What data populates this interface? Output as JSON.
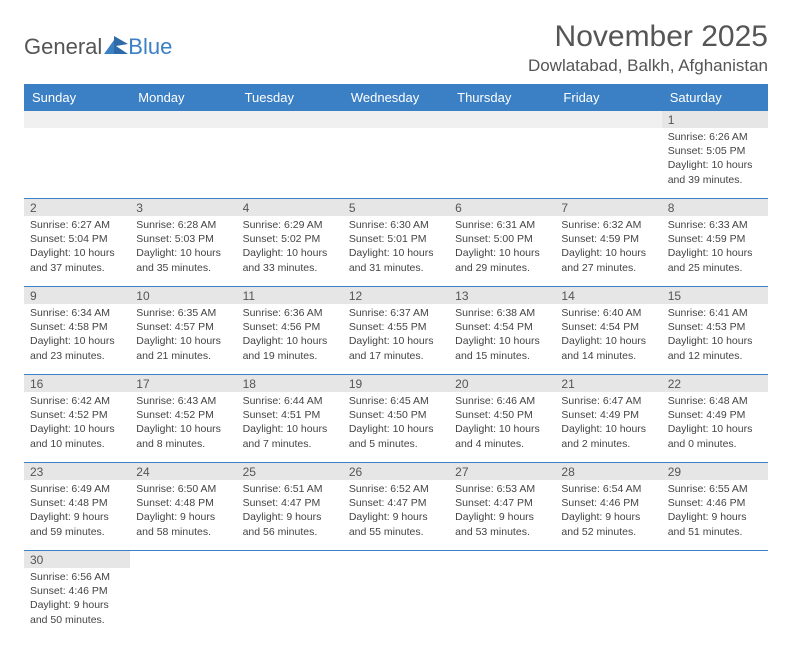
{
  "header": {
    "logo_general": "General",
    "logo_blue": "Blue",
    "month_title": "November 2025",
    "location": "Dowlatabad, Balkh, Afghanistan"
  },
  "colors": {
    "header_bg": "#3b7fc4",
    "header_text": "#ffffff",
    "daynum_bg": "#e6e6e6",
    "border": "#3b7fc4",
    "text": "#444444"
  },
  "day_labels": [
    "Sunday",
    "Monday",
    "Tuesday",
    "Wednesday",
    "Thursday",
    "Friday",
    "Saturday"
  ],
  "weeks": [
    {
      "nums": [
        "",
        "",
        "",
        "",
        "",
        "",
        "1"
      ],
      "cells": [
        null,
        null,
        null,
        null,
        null,
        null,
        {
          "sunrise": "Sunrise: 6:26 AM",
          "sunset": "Sunset: 5:05 PM",
          "day1": "Daylight: 10 hours",
          "day2": "and 39 minutes."
        }
      ]
    },
    {
      "nums": [
        "2",
        "3",
        "4",
        "5",
        "6",
        "7",
        "8"
      ],
      "cells": [
        {
          "sunrise": "Sunrise: 6:27 AM",
          "sunset": "Sunset: 5:04 PM",
          "day1": "Daylight: 10 hours",
          "day2": "and 37 minutes."
        },
        {
          "sunrise": "Sunrise: 6:28 AM",
          "sunset": "Sunset: 5:03 PM",
          "day1": "Daylight: 10 hours",
          "day2": "and 35 minutes."
        },
        {
          "sunrise": "Sunrise: 6:29 AM",
          "sunset": "Sunset: 5:02 PM",
          "day1": "Daylight: 10 hours",
          "day2": "and 33 minutes."
        },
        {
          "sunrise": "Sunrise: 6:30 AM",
          "sunset": "Sunset: 5:01 PM",
          "day1": "Daylight: 10 hours",
          "day2": "and 31 minutes."
        },
        {
          "sunrise": "Sunrise: 6:31 AM",
          "sunset": "Sunset: 5:00 PM",
          "day1": "Daylight: 10 hours",
          "day2": "and 29 minutes."
        },
        {
          "sunrise": "Sunrise: 6:32 AM",
          "sunset": "Sunset: 4:59 PM",
          "day1": "Daylight: 10 hours",
          "day2": "and 27 minutes."
        },
        {
          "sunrise": "Sunrise: 6:33 AM",
          "sunset": "Sunset: 4:59 PM",
          "day1": "Daylight: 10 hours",
          "day2": "and 25 minutes."
        }
      ]
    },
    {
      "nums": [
        "9",
        "10",
        "11",
        "12",
        "13",
        "14",
        "15"
      ],
      "cells": [
        {
          "sunrise": "Sunrise: 6:34 AM",
          "sunset": "Sunset: 4:58 PM",
          "day1": "Daylight: 10 hours",
          "day2": "and 23 minutes."
        },
        {
          "sunrise": "Sunrise: 6:35 AM",
          "sunset": "Sunset: 4:57 PM",
          "day1": "Daylight: 10 hours",
          "day2": "and 21 minutes."
        },
        {
          "sunrise": "Sunrise: 6:36 AM",
          "sunset": "Sunset: 4:56 PM",
          "day1": "Daylight: 10 hours",
          "day2": "and 19 minutes."
        },
        {
          "sunrise": "Sunrise: 6:37 AM",
          "sunset": "Sunset: 4:55 PM",
          "day1": "Daylight: 10 hours",
          "day2": "and 17 minutes."
        },
        {
          "sunrise": "Sunrise: 6:38 AM",
          "sunset": "Sunset: 4:54 PM",
          "day1": "Daylight: 10 hours",
          "day2": "and 15 minutes."
        },
        {
          "sunrise": "Sunrise: 6:40 AM",
          "sunset": "Sunset: 4:54 PM",
          "day1": "Daylight: 10 hours",
          "day2": "and 14 minutes."
        },
        {
          "sunrise": "Sunrise: 6:41 AM",
          "sunset": "Sunset: 4:53 PM",
          "day1": "Daylight: 10 hours",
          "day2": "and 12 minutes."
        }
      ]
    },
    {
      "nums": [
        "16",
        "17",
        "18",
        "19",
        "20",
        "21",
        "22"
      ],
      "cells": [
        {
          "sunrise": "Sunrise: 6:42 AM",
          "sunset": "Sunset: 4:52 PM",
          "day1": "Daylight: 10 hours",
          "day2": "and 10 minutes."
        },
        {
          "sunrise": "Sunrise: 6:43 AM",
          "sunset": "Sunset: 4:52 PM",
          "day1": "Daylight: 10 hours",
          "day2": "and 8 minutes."
        },
        {
          "sunrise": "Sunrise: 6:44 AM",
          "sunset": "Sunset: 4:51 PM",
          "day1": "Daylight: 10 hours",
          "day2": "and 7 minutes."
        },
        {
          "sunrise": "Sunrise: 6:45 AM",
          "sunset": "Sunset: 4:50 PM",
          "day1": "Daylight: 10 hours",
          "day2": "and 5 minutes."
        },
        {
          "sunrise": "Sunrise: 6:46 AM",
          "sunset": "Sunset: 4:50 PM",
          "day1": "Daylight: 10 hours",
          "day2": "and 4 minutes."
        },
        {
          "sunrise": "Sunrise: 6:47 AM",
          "sunset": "Sunset: 4:49 PM",
          "day1": "Daylight: 10 hours",
          "day2": "and 2 minutes."
        },
        {
          "sunrise": "Sunrise: 6:48 AM",
          "sunset": "Sunset: 4:49 PM",
          "day1": "Daylight: 10 hours",
          "day2": "and 0 minutes."
        }
      ]
    },
    {
      "nums": [
        "23",
        "24",
        "25",
        "26",
        "27",
        "28",
        "29"
      ],
      "cells": [
        {
          "sunrise": "Sunrise: 6:49 AM",
          "sunset": "Sunset: 4:48 PM",
          "day1": "Daylight: 9 hours",
          "day2": "and 59 minutes."
        },
        {
          "sunrise": "Sunrise: 6:50 AM",
          "sunset": "Sunset: 4:48 PM",
          "day1": "Daylight: 9 hours",
          "day2": "and 58 minutes."
        },
        {
          "sunrise": "Sunrise: 6:51 AM",
          "sunset": "Sunset: 4:47 PM",
          "day1": "Daylight: 9 hours",
          "day2": "and 56 minutes."
        },
        {
          "sunrise": "Sunrise: 6:52 AM",
          "sunset": "Sunset: 4:47 PM",
          "day1": "Daylight: 9 hours",
          "day2": "and 55 minutes."
        },
        {
          "sunrise": "Sunrise: 6:53 AM",
          "sunset": "Sunset: 4:47 PM",
          "day1": "Daylight: 9 hours",
          "day2": "and 53 minutes."
        },
        {
          "sunrise": "Sunrise: 6:54 AM",
          "sunset": "Sunset: 4:46 PM",
          "day1": "Daylight: 9 hours",
          "day2": "and 52 minutes."
        },
        {
          "sunrise": "Sunrise: 6:55 AM",
          "sunset": "Sunset: 4:46 PM",
          "day1": "Daylight: 9 hours",
          "day2": "and 51 minutes."
        }
      ]
    },
    {
      "nums": [
        "30",
        "",
        "",
        "",
        "",
        "",
        ""
      ],
      "cells": [
        {
          "sunrise": "Sunrise: 6:56 AM",
          "sunset": "Sunset: 4:46 PM",
          "day1": "Daylight: 9 hours",
          "day2": "and 50 minutes."
        },
        null,
        null,
        null,
        null,
        null,
        null
      ]
    }
  ]
}
